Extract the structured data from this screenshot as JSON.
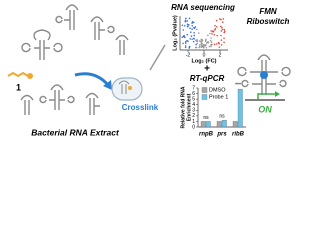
{
  "labels": {
    "compound": "1",
    "extract": "Bacterial RNA Extract",
    "crosslink": "Crosslink",
    "rna_seq": "RNA sequencing",
    "plus": "+",
    "rt_qpcr": "RT-qPCR",
    "target": [
      "FMN",
      "Riboswitch"
    ],
    "on": "ON"
  },
  "volcano": {
    "y_label": "Log₂ (Pvalue)",
    "x_label": "Log₂ (FC)",
    "xlim": [
      -3,
      3
    ],
    "xticks": [
      -2,
      0,
      2
    ]
  },
  "bar_chart": {
    "y_label": [
      "Relative fold RNA",
      "Enrichment"
    ],
    "categories": [
      "rnpB",
      "prs",
      "ribB"
    ],
    "series": [
      {
        "name": "DMSO",
        "color": "#a6a6a6",
        "values": [
          1,
          1,
          1
        ]
      },
      {
        "name": "Probe 1",
        "color": "#6cc3e8",
        "values": [
          1,
          1.2,
          6.8
        ]
      }
    ],
    "significance": [
      "ns",
      "ns",
      "***"
    ],
    "ylim": [
      0,
      7
    ],
    "yticks": [
      0,
      1,
      2,
      3,
      4,
      5,
      6,
      7
    ]
  }
}
